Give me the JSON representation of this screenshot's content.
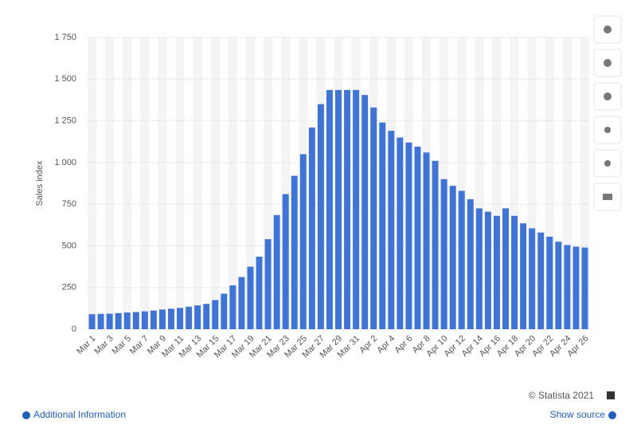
{
  "chart_data": {
    "type": "bar",
    "y_label": "Sales index",
    "categories": [
      "Mar 1",
      null,
      "Mar 3",
      null,
      "Mar 5",
      null,
      "Mar 7",
      null,
      "Mar 9",
      null,
      "Mar 11",
      null,
      "Mar 13",
      null,
      "Mar 15",
      null,
      "Mar 17",
      null,
      "Mar 19",
      null,
      "Mar 21",
      null,
      "Mar 23",
      null,
      "Mar 25",
      null,
      "Mar 27",
      null,
      "Mar 29",
      null,
      "Mar 31",
      null,
      "Apr 2",
      null,
      "Apr 4",
      null,
      "Apr 6",
      null,
      "Apr 8",
      null,
      "Apr 10",
      null,
      "Apr 12",
      null,
      "Apr 14",
      null,
      "Apr 16",
      null,
      "Apr 18",
      null,
      "Apr 20",
      null,
      "Apr 22",
      null,
      "Apr 24",
      null,
      "Apr 26"
    ],
    "values": [
      90,
      92,
      93,
      97,
      100,
      103,
      107,
      112,
      118,
      123,
      128,
      135,
      143,
      152,
      175,
      213,
      263,
      313,
      375,
      435,
      540,
      685,
      810,
      920,
      1050,
      1210,
      1350,
      1435,
      1435,
      1435,
      1435,
      1405,
      1330,
      1240,
      1190,
      1150,
      1120,
      1095,
      1060,
      1010,
      900,
      860,
      830,
      780,
      725,
      705,
      680,
      725,
      680,
      635,
      605,
      580,
      555,
      525,
      505,
      495,
      490
    ],
    "color": "#3e74da",
    "ylim": [
      0,
      1750
    ],
    "yticks": [
      0,
      250,
      500,
      750,
      {
        "value": 1000,
        "label": "1 000"
      },
      {
        "value": 1250,
        "label": "1 250"
      },
      {
        "value": 1500,
        "label": "1 500"
      },
      {
        "value": 1750,
        "label": "1 750"
      }
    ],
    "grid": true
  },
  "footer": {
    "credit": "© Statista 2021",
    "additional": "Additional Information",
    "source": "Show source"
  }
}
